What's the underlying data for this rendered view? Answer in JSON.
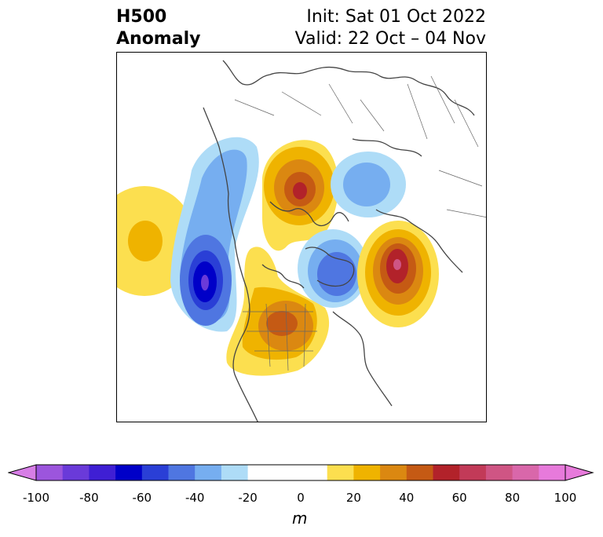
{
  "title": {
    "left_line1": "H500",
    "left_line2": "Anomaly",
    "right_line1": "Init: Sat 01 Oct 2022",
    "right_line2": "Valid: 22 Oct – 04 Nov"
  },
  "colorbar": {
    "unit": "m",
    "ticks": [
      "-100",
      "-80",
      "-60",
      "-40",
      "-20",
      "0",
      "20",
      "40",
      "60",
      "80",
      "100"
    ],
    "colors": [
      "#d77ee6",
      "#9c55dd",
      "#6a3ad9",
      "#3f1fd4",
      "#0000c8",
      "#2a3fd6",
      "#4f76e1",
      "#76aef0",
      "#aedcf7",
      "#ffffff",
      "#fcdf4f",
      "#efb300",
      "#db8811",
      "#c55a14",
      "#b2222a",
      "#c23a58",
      "#cf5584",
      "#d967aa",
      "#e77adb"
    ]
  }
}
